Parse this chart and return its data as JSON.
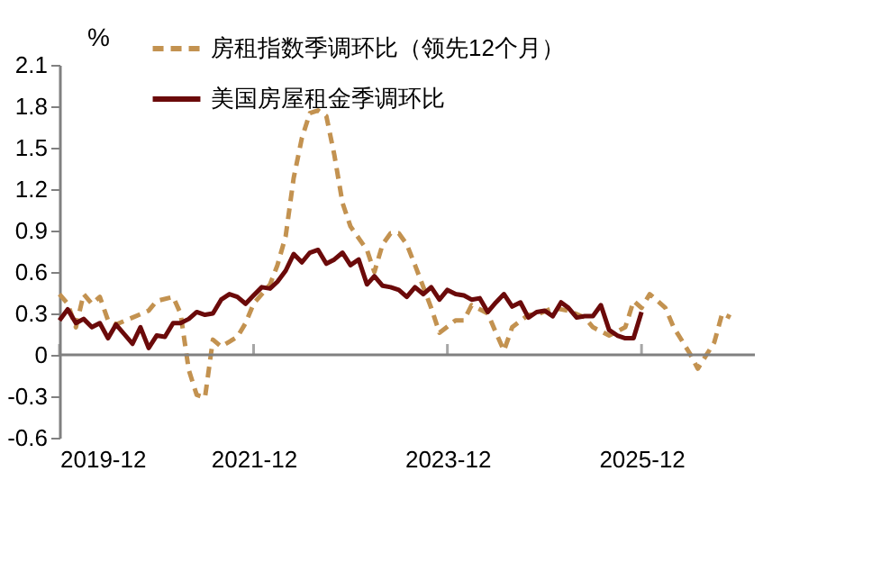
{
  "chart_data": {
    "type": "line",
    "ylabel": "%",
    "x": [
      "2019-12",
      "2020-01",
      "2020-02",
      "2020-03",
      "2020-04",
      "2020-05",
      "2020-06",
      "2020-07",
      "2020-08",
      "2020-09",
      "2020-10",
      "2020-11",
      "2020-12",
      "2021-01",
      "2021-02",
      "2021-03",
      "2021-04",
      "2021-05",
      "2021-06",
      "2021-07",
      "2021-08",
      "2021-09",
      "2021-10",
      "2021-11",
      "2021-12",
      "2022-01",
      "2022-02",
      "2022-03",
      "2022-04",
      "2022-05",
      "2022-06",
      "2022-07",
      "2022-08",
      "2022-09",
      "2022-10",
      "2022-11",
      "2022-12",
      "2023-01",
      "2023-02",
      "2023-03",
      "2023-04",
      "2023-05",
      "2023-06",
      "2023-07",
      "2023-08",
      "2023-09",
      "2023-10",
      "2023-11",
      "2023-12",
      "2024-01",
      "2024-02",
      "2024-03",
      "2024-04",
      "2024-05",
      "2024-06",
      "2024-07",
      "2024-08",
      "2024-09",
      "2024-10",
      "2024-11",
      "2024-12",
      "2025-01",
      "2025-02",
      "2025-03",
      "2025-04",
      "2025-05",
      "2025-06",
      "2025-07",
      "2025-08",
      "2025-09",
      "2025-10",
      "2025-11",
      "2025-12"
    ],
    "series": [
      {
        "name": "房租指数季调环比（领先12个月）",
        "color": "#c39250",
        "line_style": "dashed",
        "x": [
          "2019-12",
          "2020-01",
          "2020-02",
          "2020-03",
          "2020-04",
          "2020-05",
          "2020-06",
          "2020-07",
          "2020-09",
          "2020-11",
          "2020-12",
          "2021-02",
          "2021-03",
          "2021-04",
          "2021-05",
          "2021-06",
          "2021-07",
          "2021-08",
          "2021-10",
          "2021-11",
          "2021-12",
          "2022-02",
          "2022-03",
          "2022-04",
          "2022-05",
          "2022-06",
          "2022-07",
          "2022-08",
          "2022-09",
          "2022-10",
          "2022-11",
          "2022-12",
          "2023-02",
          "2023-03",
          "2023-04",
          "2023-05",
          "2023-06",
          "2023-07",
          "2023-08",
          "2023-10",
          "2023-11",
          "2024-01",
          "2024-02",
          "2024-03",
          "2024-05",
          "2024-06",
          "2024-07",
          "2024-08",
          "2024-10",
          "2024-11",
          "2025-01",
          "2025-03",
          "2025-05",
          "2025-06",
          "2025-08",
          "2025-10",
          "2025-11",
          "2025-12",
          "2026-01",
          "2026-03",
          "2026-04",
          "2026-06",
          "2026-07",
          "2026-09",
          "2026-10",
          "2026-11"
        ],
        "values": [
          0.44,
          0.37,
          0.2,
          0.44,
          0.37,
          0.42,
          0.25,
          0.22,
          0.27,
          0.32,
          0.39,
          0.42,
          0.3,
          -0.11,
          -0.29,
          -0.31,
          0.11,
          0.06,
          0.13,
          0.23,
          0.37,
          0.51,
          0.65,
          0.86,
          1.28,
          1.57,
          1.75,
          1.77,
          1.73,
          1.45,
          1.1,
          0.93,
          0.76,
          0.6,
          0.8,
          0.88,
          0.88,
          0.8,
          0.65,
          0.34,
          0.16,
          0.25,
          0.25,
          0.36,
          0.3,
          0.16,
          0.03,
          0.2,
          0.29,
          0.29,
          0.34,
          0.32,
          0.27,
          0.2,
          0.14,
          0.2,
          0.39,
          0.34,
          0.44,
          0.34,
          0.2,
          0.01,
          -0.1,
          0.09,
          0.3,
          0.27
        ]
      },
      {
        "name": "美国房屋租金季调环比",
        "color": "#6b0a0a",
        "line_style": "solid",
        "values": [
          0.25,
          0.33,
          0.23,
          0.26,
          0.2,
          0.23,
          0.12,
          0.22,
          0.15,
          0.08,
          0.2,
          0.05,
          0.14,
          0.13,
          0.23,
          0.23,
          0.26,
          0.31,
          0.29,
          0.3,
          0.4,
          0.44,
          0.42,
          0.37,
          0.43,
          0.49,
          0.48,
          0.53,
          0.61,
          0.73,
          0.67,
          0.74,
          0.76,
          0.66,
          0.69,
          0.74,
          0.65,
          0.69,
          0.51,
          0.57,
          0.5,
          0.49,
          0.47,
          0.42,
          0.49,
          0.44,
          0.49,
          0.4,
          0.47,
          0.44,
          0.43,
          0.4,
          0.41,
          0.31,
          0.38,
          0.44,
          0.35,
          0.38,
          0.27,
          0.31,
          0.32,
          0.28,
          0.38,
          0.34,
          0.27,
          0.28,
          0.28,
          0.36,
          0.18,
          0.14,
          0.12,
          0.12,
          0.31
        ]
      }
    ],
    "xlim": [
      "2019-12",
      "2027-02"
    ],
    "xticks": [
      "2019-12",
      "2021-12",
      "2023-12",
      "2025-12"
    ],
    "ylim": [
      -0.6,
      2.1
    ],
    "yticks": [
      -0.6,
      -0.3,
      0,
      0.3,
      0.6,
      0.9,
      1.2,
      1.5,
      1.8,
      2.1
    ],
    "ref_lines": [
      {
        "axis": "y",
        "value": 0,
        "color": "#808080"
      }
    ],
    "grid": false,
    "legend": "top"
  }
}
